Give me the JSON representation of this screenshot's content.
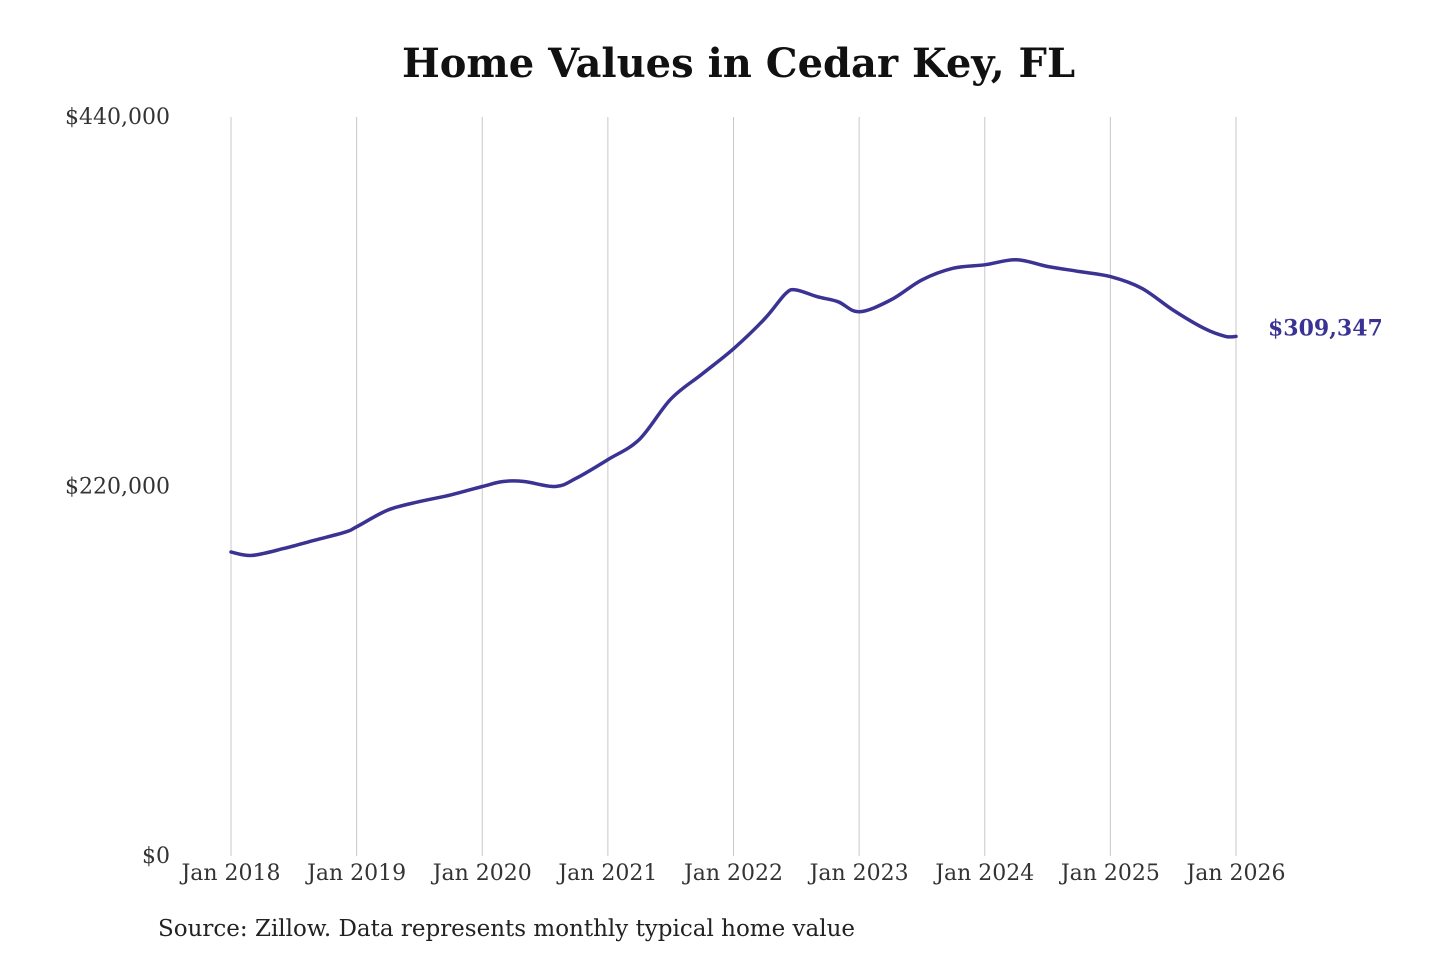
{
  "chart_data": {
    "type": "line",
    "title": "Home Values in Cedar Key, FL",
    "source": "Source: Zillow. Data represents monthly typical home value",
    "ylim": [
      0,
      440000
    ],
    "y_ticks": [
      {
        "value": 0,
        "label": "$0"
      },
      {
        "value": 220000,
        "label": "$220,000"
      },
      {
        "value": 440000,
        "label": "$440,000"
      }
    ],
    "x_ticks": [
      {
        "value": "2018-01",
        "label": "Jan 2018"
      },
      {
        "value": "2019-01",
        "label": "Jan 2019"
      },
      {
        "value": "2020-01",
        "label": "Jan 2020"
      },
      {
        "value": "2021-01",
        "label": "Jan 2021"
      },
      {
        "value": "2022-01",
        "label": "Jan 2022"
      },
      {
        "value": "2023-01",
        "label": "Jan 2023"
      },
      {
        "value": "2024-01",
        "label": "Jan 2024"
      },
      {
        "value": "2025-01",
        "label": "Jan 2025"
      },
      {
        "value": "2026-01",
        "label": "Jan 2026"
      }
    ],
    "grid": "vertical",
    "colors": {
      "line": "#3a3393",
      "grid": "#c8c8c8",
      "text": "#333333"
    },
    "end_label": "$309,347",
    "series": [
      {
        "x": [
          "2018-01",
          "2018-03",
          "2018-06",
          "2018-09",
          "2018-12",
          "2019-01",
          "2019-04",
          "2019-07",
          "2019-10",
          "2020-01",
          "2020-03",
          "2020-05",
          "2020-08",
          "2020-10",
          "2021-01",
          "2021-04",
          "2021-07",
          "2021-10",
          "2022-01",
          "2022-04",
          "2022-06",
          "2022-07",
          "2022-09",
          "2022-11",
          "2023-01",
          "2023-04",
          "2023-07",
          "2023-10",
          "2024-01",
          "2024-04",
          "2024-07",
          "2024-10",
          "2025-01",
          "2025-04",
          "2025-07",
          "2025-10",
          "2025-12",
          "2026-01"
        ],
        "y": [
          181000,
          179000,
          183000,
          188000,
          193000,
          196000,
          206000,
          211000,
          215000,
          220000,
          223000,
          223000,
          220000,
          225000,
          236000,
          248000,
          272000,
          287000,
          302000,
          320000,
          335000,
          337000,
          333000,
          330000,
          324000,
          331000,
          343000,
          350000,
          352000,
          355000,
          351000,
          348000,
          345000,
          338000,
          325000,
          314000,
          309347,
          309347
        ]
      }
    ]
  }
}
